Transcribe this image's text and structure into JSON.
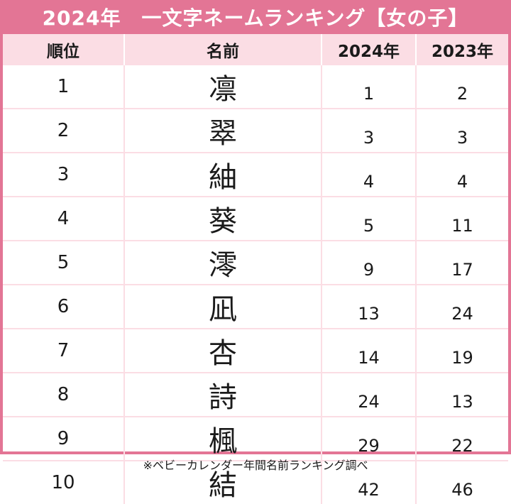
{
  "title": "2024年　一文字ネームランキング【女の子】",
  "headers": [
    "順位",
    "名前",
    "2024年",
    "2023年"
  ],
  "rows": [
    {
      "rank": "1",
      "name": "凛",
      "y2024": "1",
      "y2023": "2"
    },
    {
      "rank": "2",
      "name": "翠",
      "y2024": "3",
      "y2023": "3"
    },
    {
      "rank": "3",
      "name": "紬",
      "y2024": "4",
      "y2023": "4"
    },
    {
      "rank": "4",
      "name": "葵",
      "y2024": "5",
      "y2023": "11"
    },
    {
      "rank": "5",
      "name": "澪",
      "y2024": "9",
      "y2023": "17"
    },
    {
      "rank": "6",
      "name": "凪",
      "y2024": "13",
      "y2023": "24"
    },
    {
      "rank": "7",
      "name": "杏",
      "y2024": "14",
      "y2023": "19"
    },
    {
      "rank": "8",
      "name": "詩",
      "y2024": "24",
      "y2023": "13"
    },
    {
      "rank": "9",
      "name": "楓",
      "y2024": "29",
      "y2023": "22"
    },
    {
      "rank": "10",
      "name": "結",
      "y2024": "42",
      "y2023": "46"
    }
  ],
  "footnote": "※ベビーカレンダー年間名前ランキング調べ",
  "colors": {
    "accent": "#e37595",
    "header_bg": "#fbdde4"
  }
}
